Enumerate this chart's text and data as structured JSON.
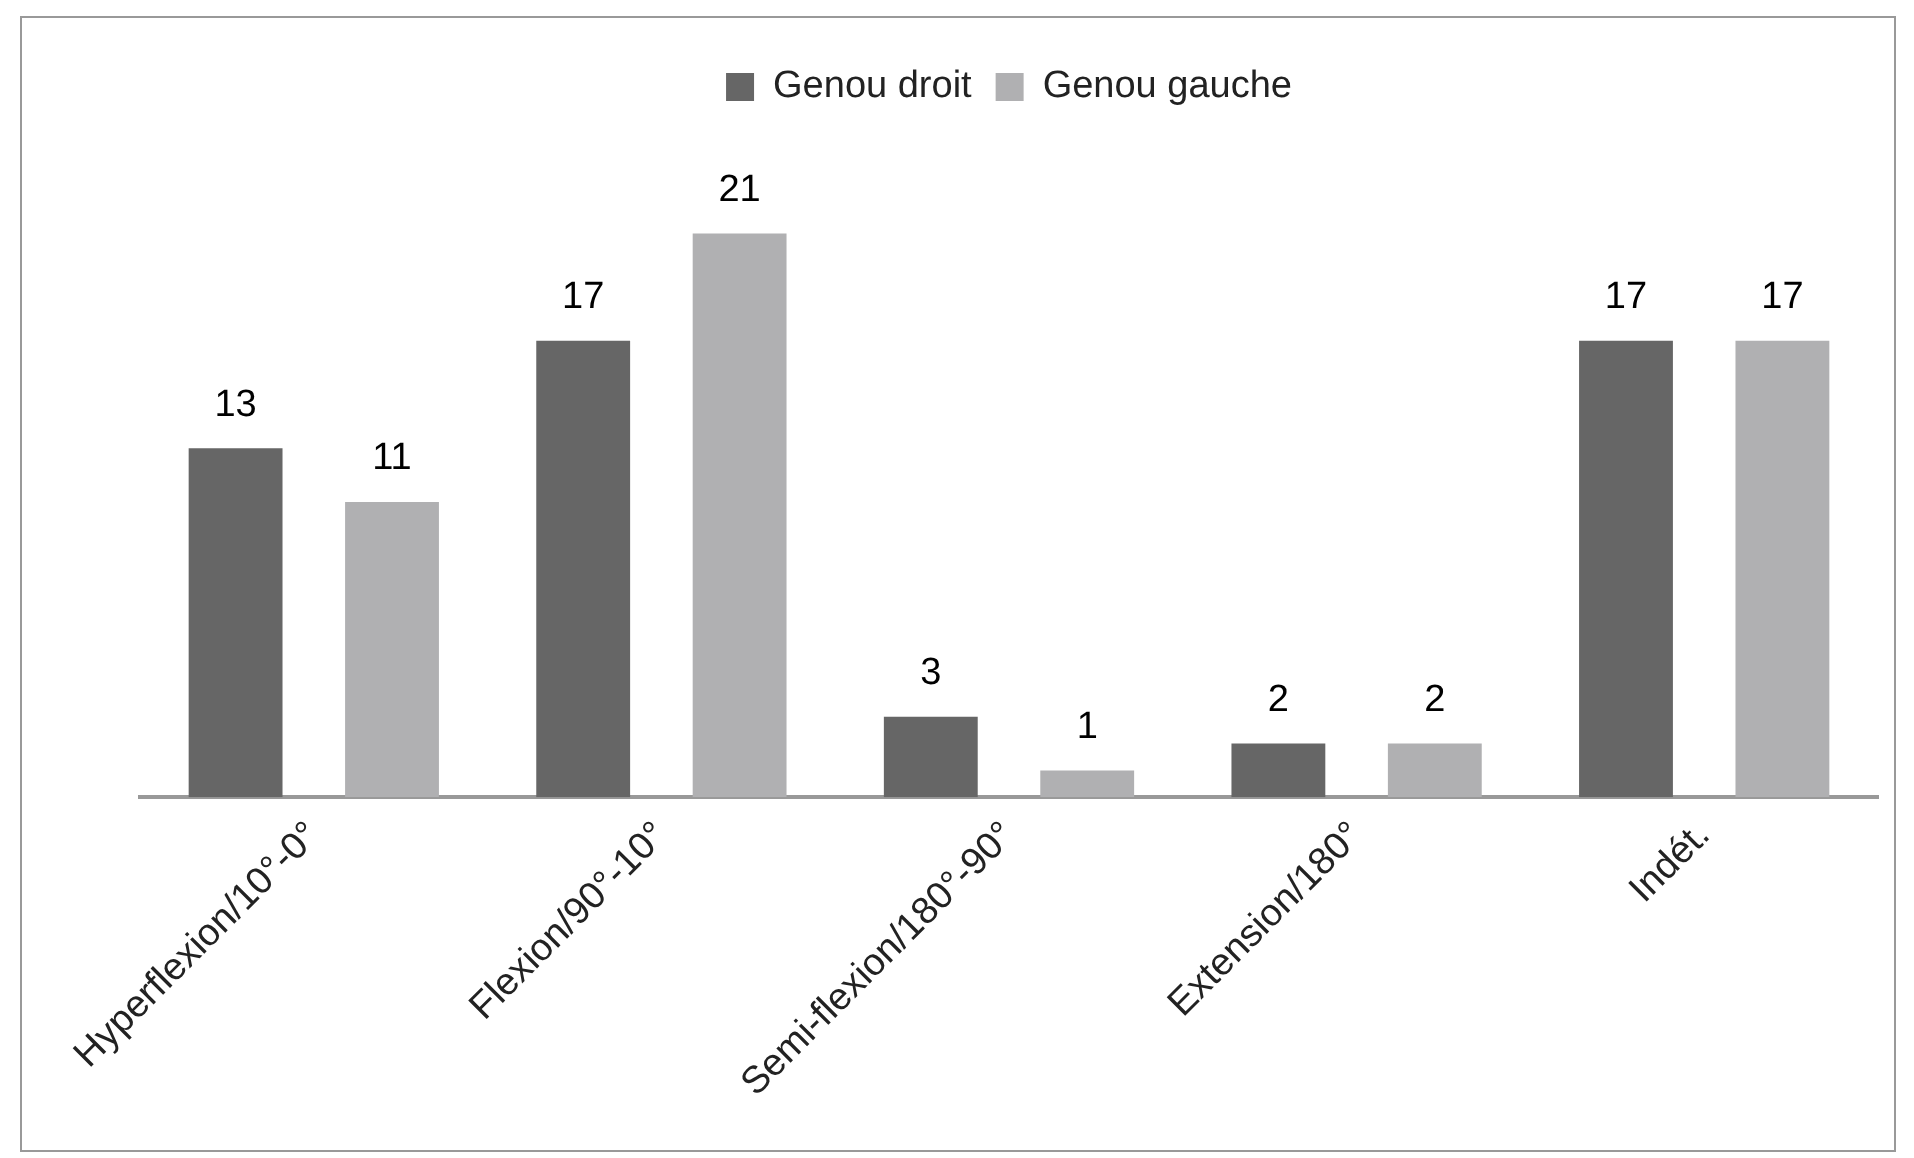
{
  "chart_data": {
    "type": "bar",
    "categories": [
      "Hyperflexion/10°-0°",
      "Flexion/90°-10°",
      "Semi-flexion/180°-90°",
      "Extension/180°",
      "Indét."
    ],
    "series": [
      {
        "name": "Genou droit",
        "color": "#666666",
        "values": [
          13,
          17,
          3,
          2,
          17
        ]
      },
      {
        "name": "Genou gauche",
        "color": "#b0b0b2",
        "values": [
          11,
          21,
          1,
          2,
          17
        ]
      }
    ],
    "data_labels": true,
    "legend": "top",
    "grid": false
  }
}
